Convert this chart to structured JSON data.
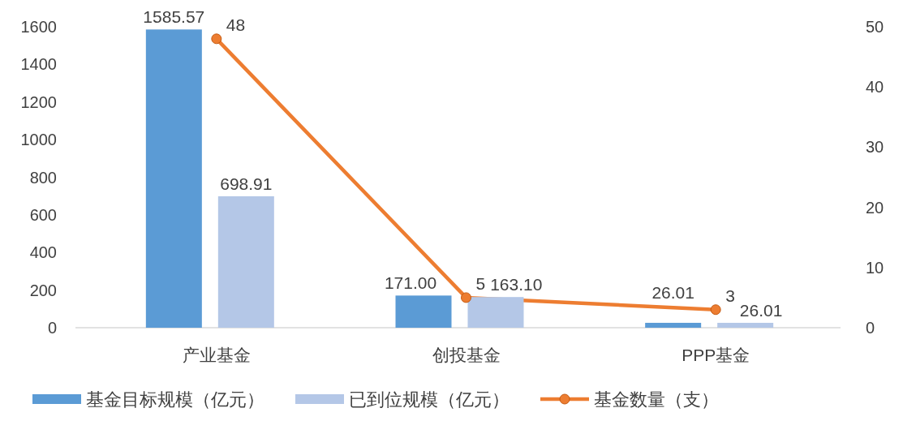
{
  "chart_data": {
    "type": "bar",
    "categories": [
      "产业基金",
      "创投基金",
      "PPP基金"
    ],
    "series": [
      {
        "name": "基金目标规模（亿元）",
        "color": "#5b9bd5",
        "values": [
          1585.57,
          171.0,
          26.01
        ],
        "value_labels": [
          "1585.57",
          "171.00",
          "26.01"
        ]
      },
      {
        "name": "已到位规模（亿元）",
        "color": "#b4c7e7",
        "values": [
          698.91,
          163.1,
          26.01
        ],
        "value_labels": [
          "698.91",
          "163.10",
          "26.01"
        ]
      },
      {
        "name": "基金数量（支）",
        "type": "line",
        "axis": "y2",
        "color": "#ed7d31",
        "values": [
          48,
          5,
          3
        ],
        "value_labels": [
          "48",
          "5",
          "3"
        ]
      }
    ],
    "marker": "circle",
    "line_style": "solid",
    "ylim": [
      0,
      1600
    ],
    "yticks": [
      0,
      200,
      400,
      600,
      800,
      1000,
      1200,
      1400,
      1600
    ],
    "y2lim": [
      0,
      50
    ],
    "y2ticks": [
      0,
      10,
      20,
      30,
      40,
      50
    ],
    "grid": false,
    "legend": "bottom"
  }
}
